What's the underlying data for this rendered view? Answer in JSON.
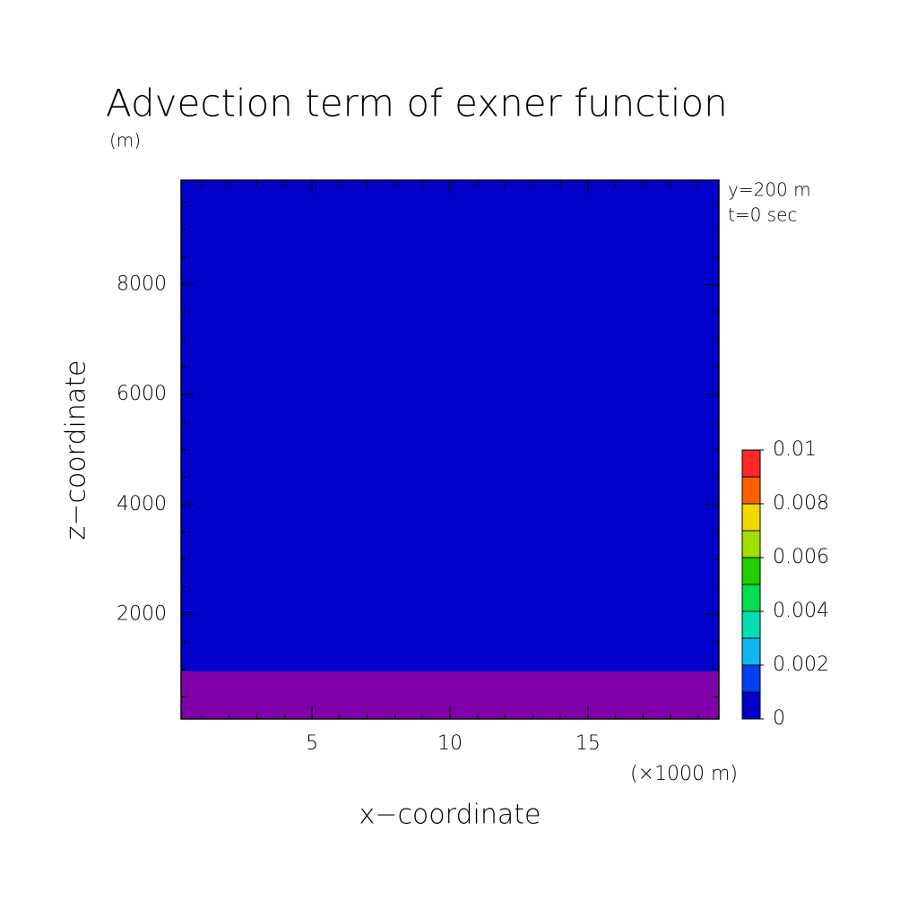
{
  "chart_data": {
    "type": "contour",
    "title": "Advection term of exner function",
    "units": "(m)",
    "annotations": [
      "y=200 m",
      "t=0 sec"
    ],
    "x_label": "x−coordinate",
    "x_unit": "(×1000 m)",
    "y_label": "z−coordinate",
    "xlim": [
      0.25,
      19.75
    ],
    "xticks": [
      5,
      10,
      15
    ],
    "xminorticks": [
      1,
      2,
      3,
      4,
      6,
      7,
      8,
      9,
      11,
      12,
      13,
      14,
      16,
      17,
      18,
      19
    ],
    "ylim": [
      100,
      9900
    ],
    "yticks": [
      2000,
      4000,
      6000,
      8000
    ],
    "yminorticks": [
      500,
      1000,
      1500,
      2500,
      3000,
      3500,
      4500,
      5000,
      5500,
      6500,
      7000,
      7500,
      8500,
      9000,
      9500
    ],
    "regions": [
      {
        "zlim": [
          100,
          965
        ],
        "color": "#7f00a8"
      },
      {
        "zlim": [
          965,
          9900
        ],
        "color": "#0000c8"
      }
    ],
    "colorbar": {
      "levels": [
        0,
        0.001,
        0.002,
        0.003,
        0.004,
        0.005,
        0.006,
        0.007,
        0.008,
        0.009,
        0.01
      ],
      "colors": [
        "#0000c8",
        "#0040f0",
        "#10b8f0",
        "#00e0b0",
        "#00e050",
        "#20d000",
        "#a0e000",
        "#f0d800",
        "#ff6000",
        "#ff2828"
      ],
      "ticks": [
        0,
        0.002,
        0.004,
        0.006,
        0.008,
        0.01
      ]
    }
  }
}
